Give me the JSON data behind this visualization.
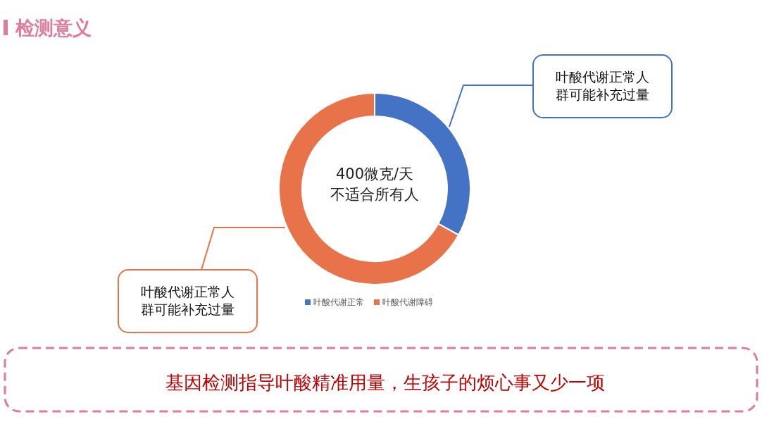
{
  "chart_data": {
    "type": "donut",
    "title": "检测意义",
    "categories": [
      "叶酸代谢正常",
      "叶酸代谢障碍"
    ],
    "values": [
      33,
      67
    ],
    "colors": [
      "#4472c4",
      "#e8734a"
    ],
    "legend": "bottom",
    "annotations": [
      "400微克/天",
      "不适合所有人",
      "叶酸代谢正常人群可能补充过量",
      "叶酸代谢正常人群可能补充过量",
      "基因检测指导叶酸精准用量，生孩子的烦心事又少一项"
    ]
  }
}
